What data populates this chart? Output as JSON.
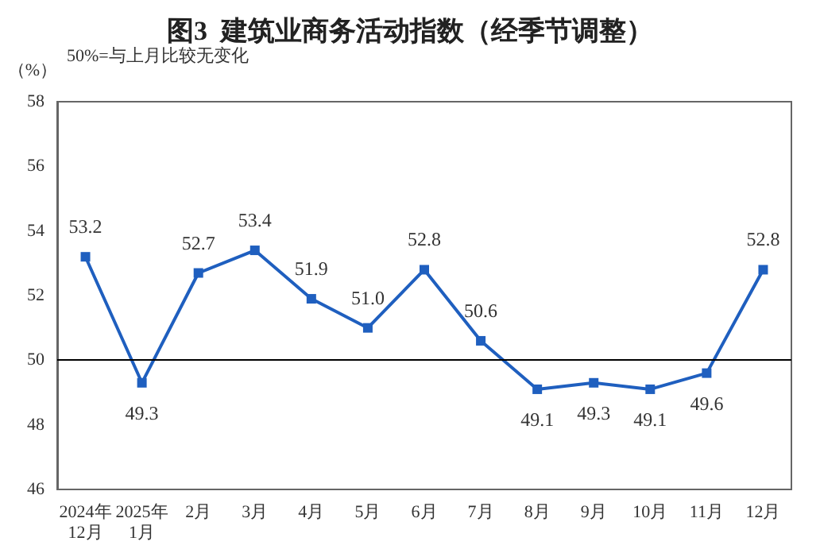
{
  "chart_data": {
    "type": "line",
    "title": "图3  建筑业商务活动指数（经季节调整）",
    "ylabel": "（%）",
    "annotations": [
      "50%=与上月比较无变化"
    ],
    "categories": [
      "2024年\n12月",
      "2025年\n1月",
      "2月",
      "3月",
      "4月",
      "5月",
      "6月",
      "7月",
      "8月",
      "9月",
      "10月",
      "11月",
      "12月"
    ],
    "series": [
      {
        "color": "#1f5fbf",
        "values": [
          53.2,
          49.3,
          52.7,
          53.4,
          51.9,
          51.0,
          52.8,
          50.6,
          49.1,
          49.3,
          49.1,
          49.6,
          52.8
        ]
      }
    ],
    "ylim": [
      46,
      58
    ],
    "yticks": [
      46,
      48,
      50,
      52,
      54,
      56,
      58
    ],
    "ref_lines": [
      {
        "axis": "y",
        "value": 50,
        "color": "#000000"
      }
    ],
    "value_labels": [
      "53.2",
      "49.3",
      "52.7",
      "53.4",
      "51.9",
      "51.0",
      "52.8",
      "50.6",
      "49.1",
      "49.3",
      "49.1",
      "49.6",
      "52.8"
    ],
    "marker": "square",
    "line_style": "solid"
  }
}
